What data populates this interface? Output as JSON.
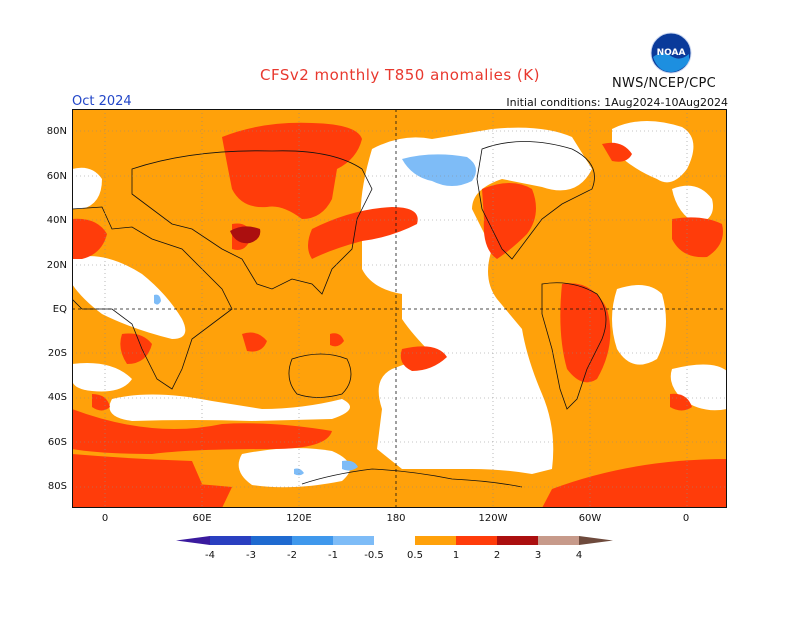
{
  "header": {
    "title": "CFSv2 monthly T850 anomalies (K)",
    "month": "Oct 2024",
    "init": "Initial conditions: 1Aug2024-10Aug2024",
    "agency": "NWS/NCEP/CPC",
    "logo_text": "NOAA"
  },
  "map": {
    "y_ticks": [
      "80N",
      "60N",
      "40N",
      "20N",
      "EQ",
      "20S",
      "40S",
      "60S",
      "80S"
    ],
    "x_ticks": [
      "0",
      "60E",
      "120E",
      "180",
      "120W",
      "60W",
      "0"
    ]
  },
  "colorbar": {
    "labels": [
      "-4",
      "-3",
      "-2",
      "-1",
      "-0.5",
      "0.5",
      "1",
      "2",
      "3",
      "4"
    ],
    "colors": {
      "lt_neg4": "#3a1a9e",
      "neg4_neg3": "#2a3fc0",
      "neg3_neg2": "#1f6ad0",
      "neg2_neg1": "#3f98ec",
      "neg1_neg05": "#7ebcf7",
      "neutral": "#ffffff",
      "p05_1": "#ffa10a",
      "p1_2": "#ff3c0a",
      "p2_3": "#ab0f0f",
      "p3_4": "#c79a8a",
      "gt4": "#6e4a3c"
    }
  }
}
